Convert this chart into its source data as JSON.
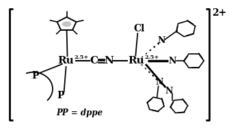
{
  "fig_width": 3.35,
  "fig_height": 1.89,
  "dpi": 100,
  "background": "#ffffff",
  "text_color": "#000000",
  "line_color": "#000000",
  "ru1_label": "Ru",
  "ru1_super": "2.5+",
  "ru2_label": "Ru",
  "ru2_super": "2.5+",
  "cl_label": "Cl",
  "pp_label": "PP = dppe",
  "p1_label": "P",
  "p2_label": "P",
  "charge_label": "2+"
}
